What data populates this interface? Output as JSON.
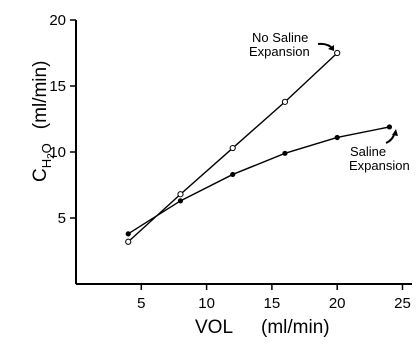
{
  "chart_data": {
    "type": "line",
    "xlabel": "VOL",
    "xlabel_unit": "(ml/min)",
    "ylabel_main": "C",
    "ylabel_sub": "H",
    "ylabel_sub2": "2",
    "ylabel_tail": "O",
    "ylabel_unit": "(ml/min)",
    "xlim": [
      0,
      25
    ],
    "ylim": [
      0,
      20
    ],
    "x_ticks": [
      5,
      10,
      15,
      20,
      25
    ],
    "y_ticks": [
      5,
      10,
      15,
      20
    ],
    "x_tick_labels": [
      "5",
      "10",
      "15",
      "20",
      "25"
    ],
    "y_tick_labels": [
      "5",
      "10",
      "15",
      "20"
    ],
    "grid": false,
    "series": [
      {
        "name": "No Saline Expansion",
        "label_lines": [
          "No Saline",
          "Expansion"
        ],
        "marker": "open-circle",
        "x": [
          4,
          8,
          12,
          16,
          20
        ],
        "y": [
          3.2,
          6.8,
          10.3,
          13.8,
          17.5
        ]
      },
      {
        "name": "Saline Expansion",
        "label_lines": [
          "Saline",
          "Expansion"
        ],
        "marker": "filled-circle",
        "x": [
          4,
          8,
          12,
          16,
          20,
          24
        ],
        "y": [
          3.8,
          6.3,
          8.3,
          9.9,
          11.1,
          11.9
        ]
      }
    ]
  }
}
